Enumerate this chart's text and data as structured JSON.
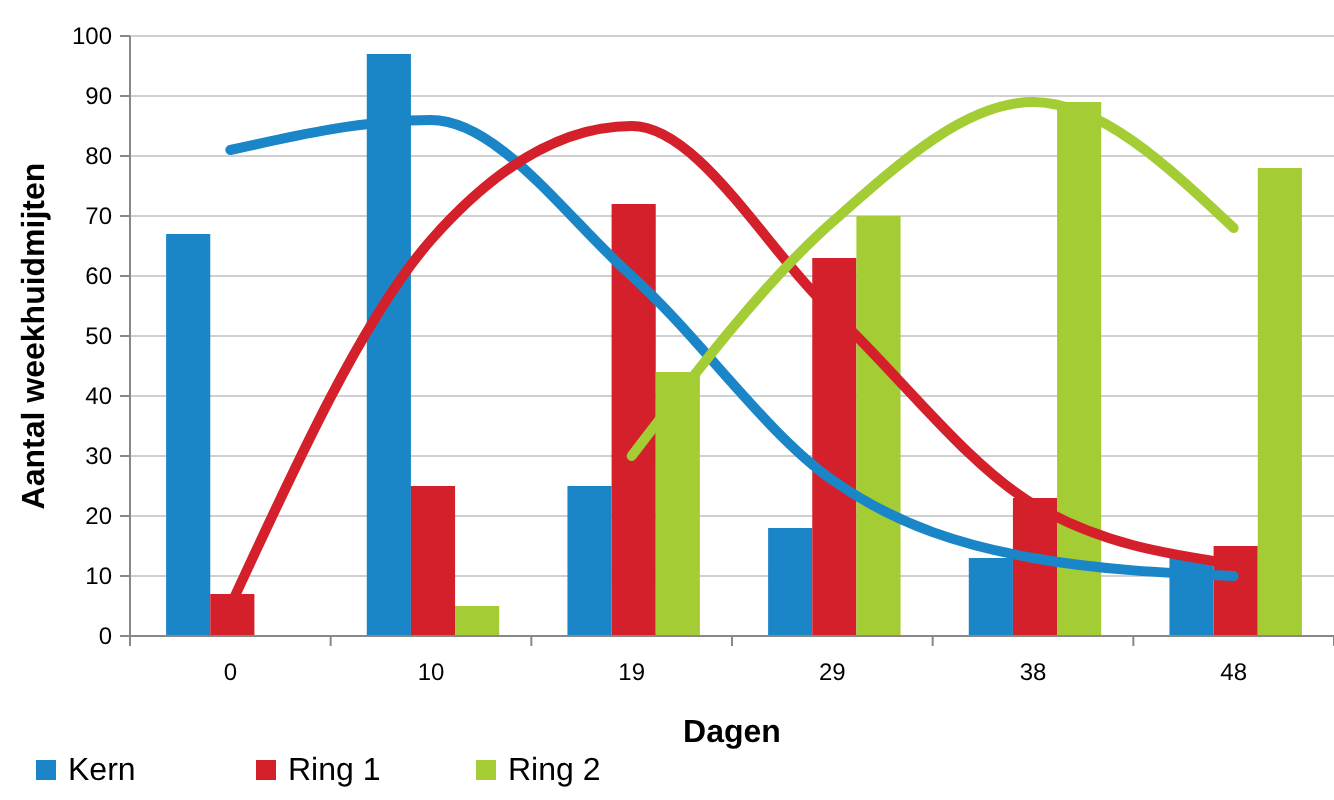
{
  "chart_data": {
    "type": "bar",
    "xlabel": "Dagen",
    "ylabel": "Aantal weekhuidmijten",
    "categories": [
      "0",
      "10",
      "19",
      "29",
      "38",
      "48"
    ],
    "ylim": [
      0,
      100
    ],
    "yticks": [
      0,
      10,
      20,
      30,
      40,
      50,
      60,
      70,
      80,
      90,
      100
    ],
    "grid": "y",
    "legend": "bottom left",
    "series": [
      {
        "name": "Kern",
        "color": "#1a86c8",
        "values": [
          67,
          97,
          25,
          18,
          13,
          13
        ]
      },
      {
        "name": "Ring 1",
        "color": "#d4202a",
        "values": [
          7,
          25,
          72,
          63,
          23,
          15
        ]
      },
      {
        "name": "Ring 2",
        "color": "#a4cc35",
        "values": [
          null,
          5,
          44,
          70,
          89,
          78
        ]
      },
      {
        "type": "line",
        "color": "#1a86c8",
        "values": [
          81,
          86,
          60,
          26,
          13,
          10
        ]
      },
      {
        "type": "line",
        "color": "#d4202a",
        "values": [
          5,
          66,
          85,
          54,
          22,
          12
        ]
      },
      {
        "type": "line",
        "color": "#a4cc35",
        "values": [
          null,
          null,
          30,
          69,
          89,
          68
        ]
      }
    ]
  }
}
